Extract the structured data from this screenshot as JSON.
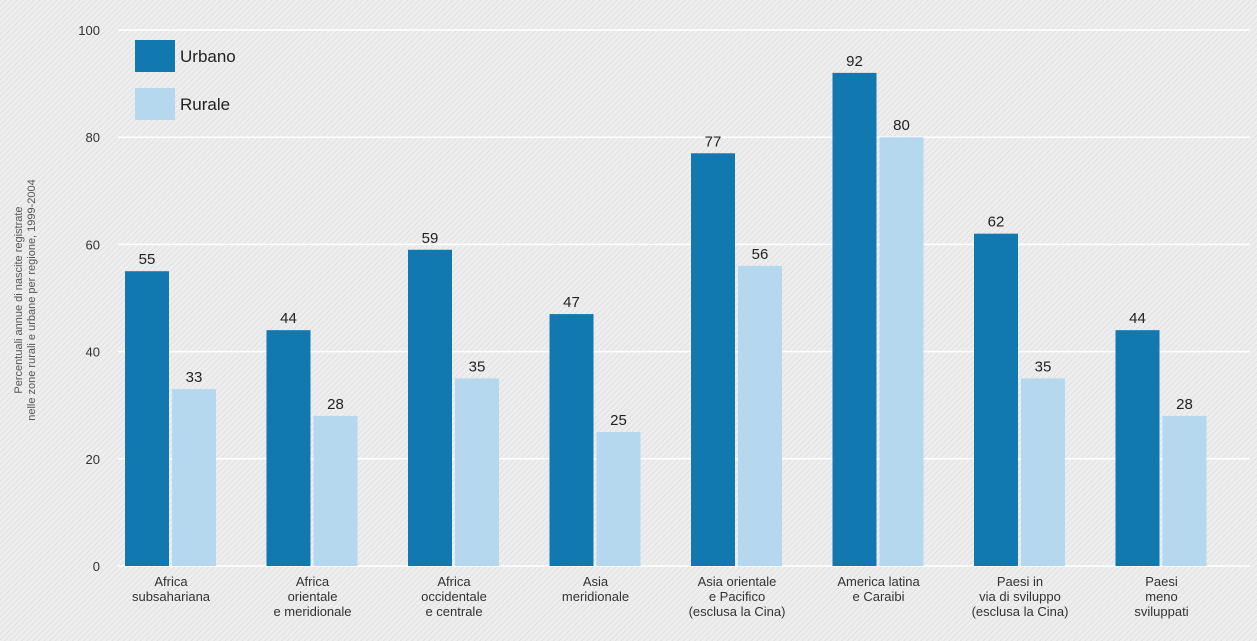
{
  "chart_data": {
    "type": "bar",
    "ylabel": "Percentuali annue di nascite registrate\nnelle zone rurali e urbane per regione, 1999-2004",
    "categories": [
      "Africa\nsubsahariana",
      "Africa\norientale\ne meridionale",
      "Africa\noccidentale\ne centrale",
      "Asia\nmeridionale",
      "Asia orientale\ne Pacifico\n(esclusa la Cina)",
      "America latina\ne Caraibi",
      "Paesi in\nvia di sviluppo\n(esclusa la Cina)",
      "Paesi\nmeno\nsviluppati"
    ],
    "series": [
      {
        "name": "Urbano",
        "color": "#1278b0",
        "values": [
          55,
          44,
          59,
          47,
          77,
          92,
          62,
          44
        ]
      },
      {
        "name": "Rurale",
        "color": "#b6d8ee",
        "values": [
          33,
          28,
          35,
          25,
          56,
          80,
          35,
          28
        ]
      }
    ],
    "ylim": [
      0,
      100
    ],
    "yticks": [
      0,
      20,
      40,
      60,
      80,
      100
    ],
    "grid": true,
    "legend": "upper left"
  }
}
